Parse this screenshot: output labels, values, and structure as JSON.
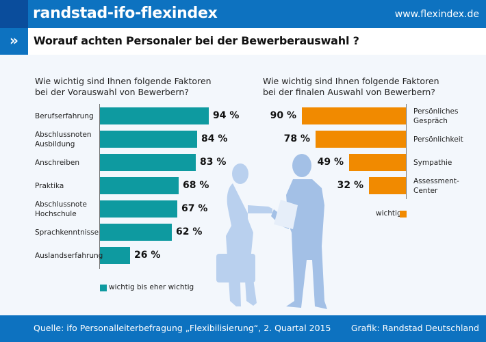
{
  "header": {
    "title": "randstad-ifo-flexindex",
    "url": "www.flexindex.de",
    "subtitle_icon": "»",
    "subtitle": "Worauf achten Personaler bei der Bewerberauswahl ?"
  },
  "colors": {
    "header_blue": "#0d72c0",
    "header_dark_blue": "#0a4d9c",
    "teal": "#0e9aa0",
    "orange": "#f18a00",
    "silhouette": "#a9c6ea"
  },
  "chart_data": [
    {
      "type": "bar",
      "orientation": "horizontal",
      "title": "Wie wichtig sind Ihnen folgende Faktoren bei der Vorauswahl von Bewerbern?",
      "title_lines": [
        "Wie wichtig sind Ihnen folgende Faktoren",
        "bei der Vorauswahl von Bewerbern?"
      ],
      "categories": [
        [
          "Berufserfahrung"
        ],
        [
          "Abschlussnoten",
          "Ausbildung"
        ],
        [
          "Anschreiben"
        ],
        [
          "Praktika"
        ],
        [
          "Abschlussnote",
          "Hochschule"
        ],
        [
          "Sprachkenntnisse"
        ],
        [
          "Auslandserfahrung"
        ]
      ],
      "series": [
        {
          "name": "wichtig bis eher wichtig",
          "values": [
            94,
            84,
            83,
            68,
            67,
            62,
            26
          ]
        }
      ],
      "value_labels": [
        "94 %",
        "84 %",
        "83 %",
        "68 %",
        "67 %",
        "62 %",
        "26 %"
      ],
      "unit": "%",
      "xlim": [
        0,
        100
      ],
      "legend": "bottom-left",
      "grid": false
    },
    {
      "type": "bar",
      "orientation": "horizontal-reversed",
      "title": "Wie wichtig sind Ihnen folgende Faktoren bei der finalen Auswahl von Bewerbern?",
      "title_lines": [
        "Wie wichtig sind Ihnen folgende Faktoren",
        "bei der finalen Auswahl von Bewerbern?"
      ],
      "categories": [
        [
          "Persönliches",
          "Gespräch"
        ],
        [
          "Persönlichkeit"
        ],
        [
          "Sympathie"
        ],
        [
          "Assessment-",
          "Center"
        ]
      ],
      "series": [
        {
          "name": "wichtig",
          "values": [
            90,
            78,
            49,
            32
          ]
        }
      ],
      "value_labels": [
        "90 %",
        "78 %",
        "49 %",
        "32 %"
      ],
      "unit": "%",
      "xlim": [
        0,
        100
      ],
      "legend": "bottom-right",
      "grid": false
    }
  ],
  "footer": {
    "source": "Quelle: ifo Personalleiterbefragung „Flexibilisierung“, 2. Quartal 2015",
    "credit": "Grafik: Randstad Deutschland"
  }
}
